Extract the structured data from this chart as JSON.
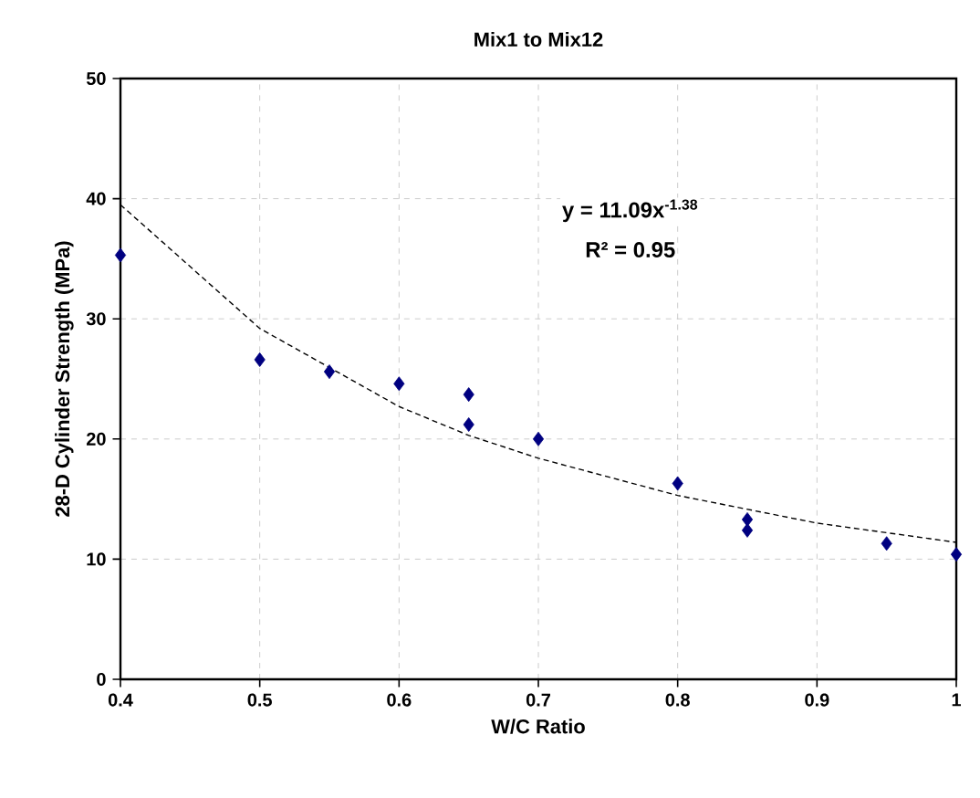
{
  "chart_data": {
    "type": "scatter",
    "title": "Mix1 to Mix12",
    "xlabel": "W/C Ratio",
    "ylabel": "28-D Cylinder Strength (MPa)",
    "annotations": [
      "y = 11.09x$^{-1.38}$",
      "R² = 0.95"
    ],
    "series": [
      {
        "color": "#000080",
        "marker": "diamond",
        "x": [
          0.4,
          0.5,
          0.55,
          0.6,
          0.65,
          0.65,
          0.7,
          0.8,
          0.85,
          0.85,
          0.95,
          1.0
        ],
        "values": [
          35.3,
          26.6,
          25.6,
          24.6,
          23.7,
          21.2,
          20.0,
          16.3,
          13.3,
          12.4,
          11.3,
          10.4
        ]
      },
      {
        "type": "line",
        "color": "#000000",
        "marker": "none",
        "line_style": "dashed",
        "x": [
          0.4,
          0.5,
          0.6,
          0.65,
          0.7,
          0.8,
          0.9,
          1.0
        ],
        "values": [
          39.5,
          29.2,
          22.7,
          20.3,
          18.4,
          15.3,
          13.0,
          11.4
        ]
      }
    ],
    "xlim": [
      0.4,
      1
    ],
    "ylim": [
      0,
      50
    ],
    "xticks": [
      0.4,
      0.5,
      0.6,
      0.7,
      0.8,
      0.9,
      1
    ],
    "yticks": [
      0,
      10,
      20,
      30,
      40,
      50
    ],
    "grid": true
  }
}
